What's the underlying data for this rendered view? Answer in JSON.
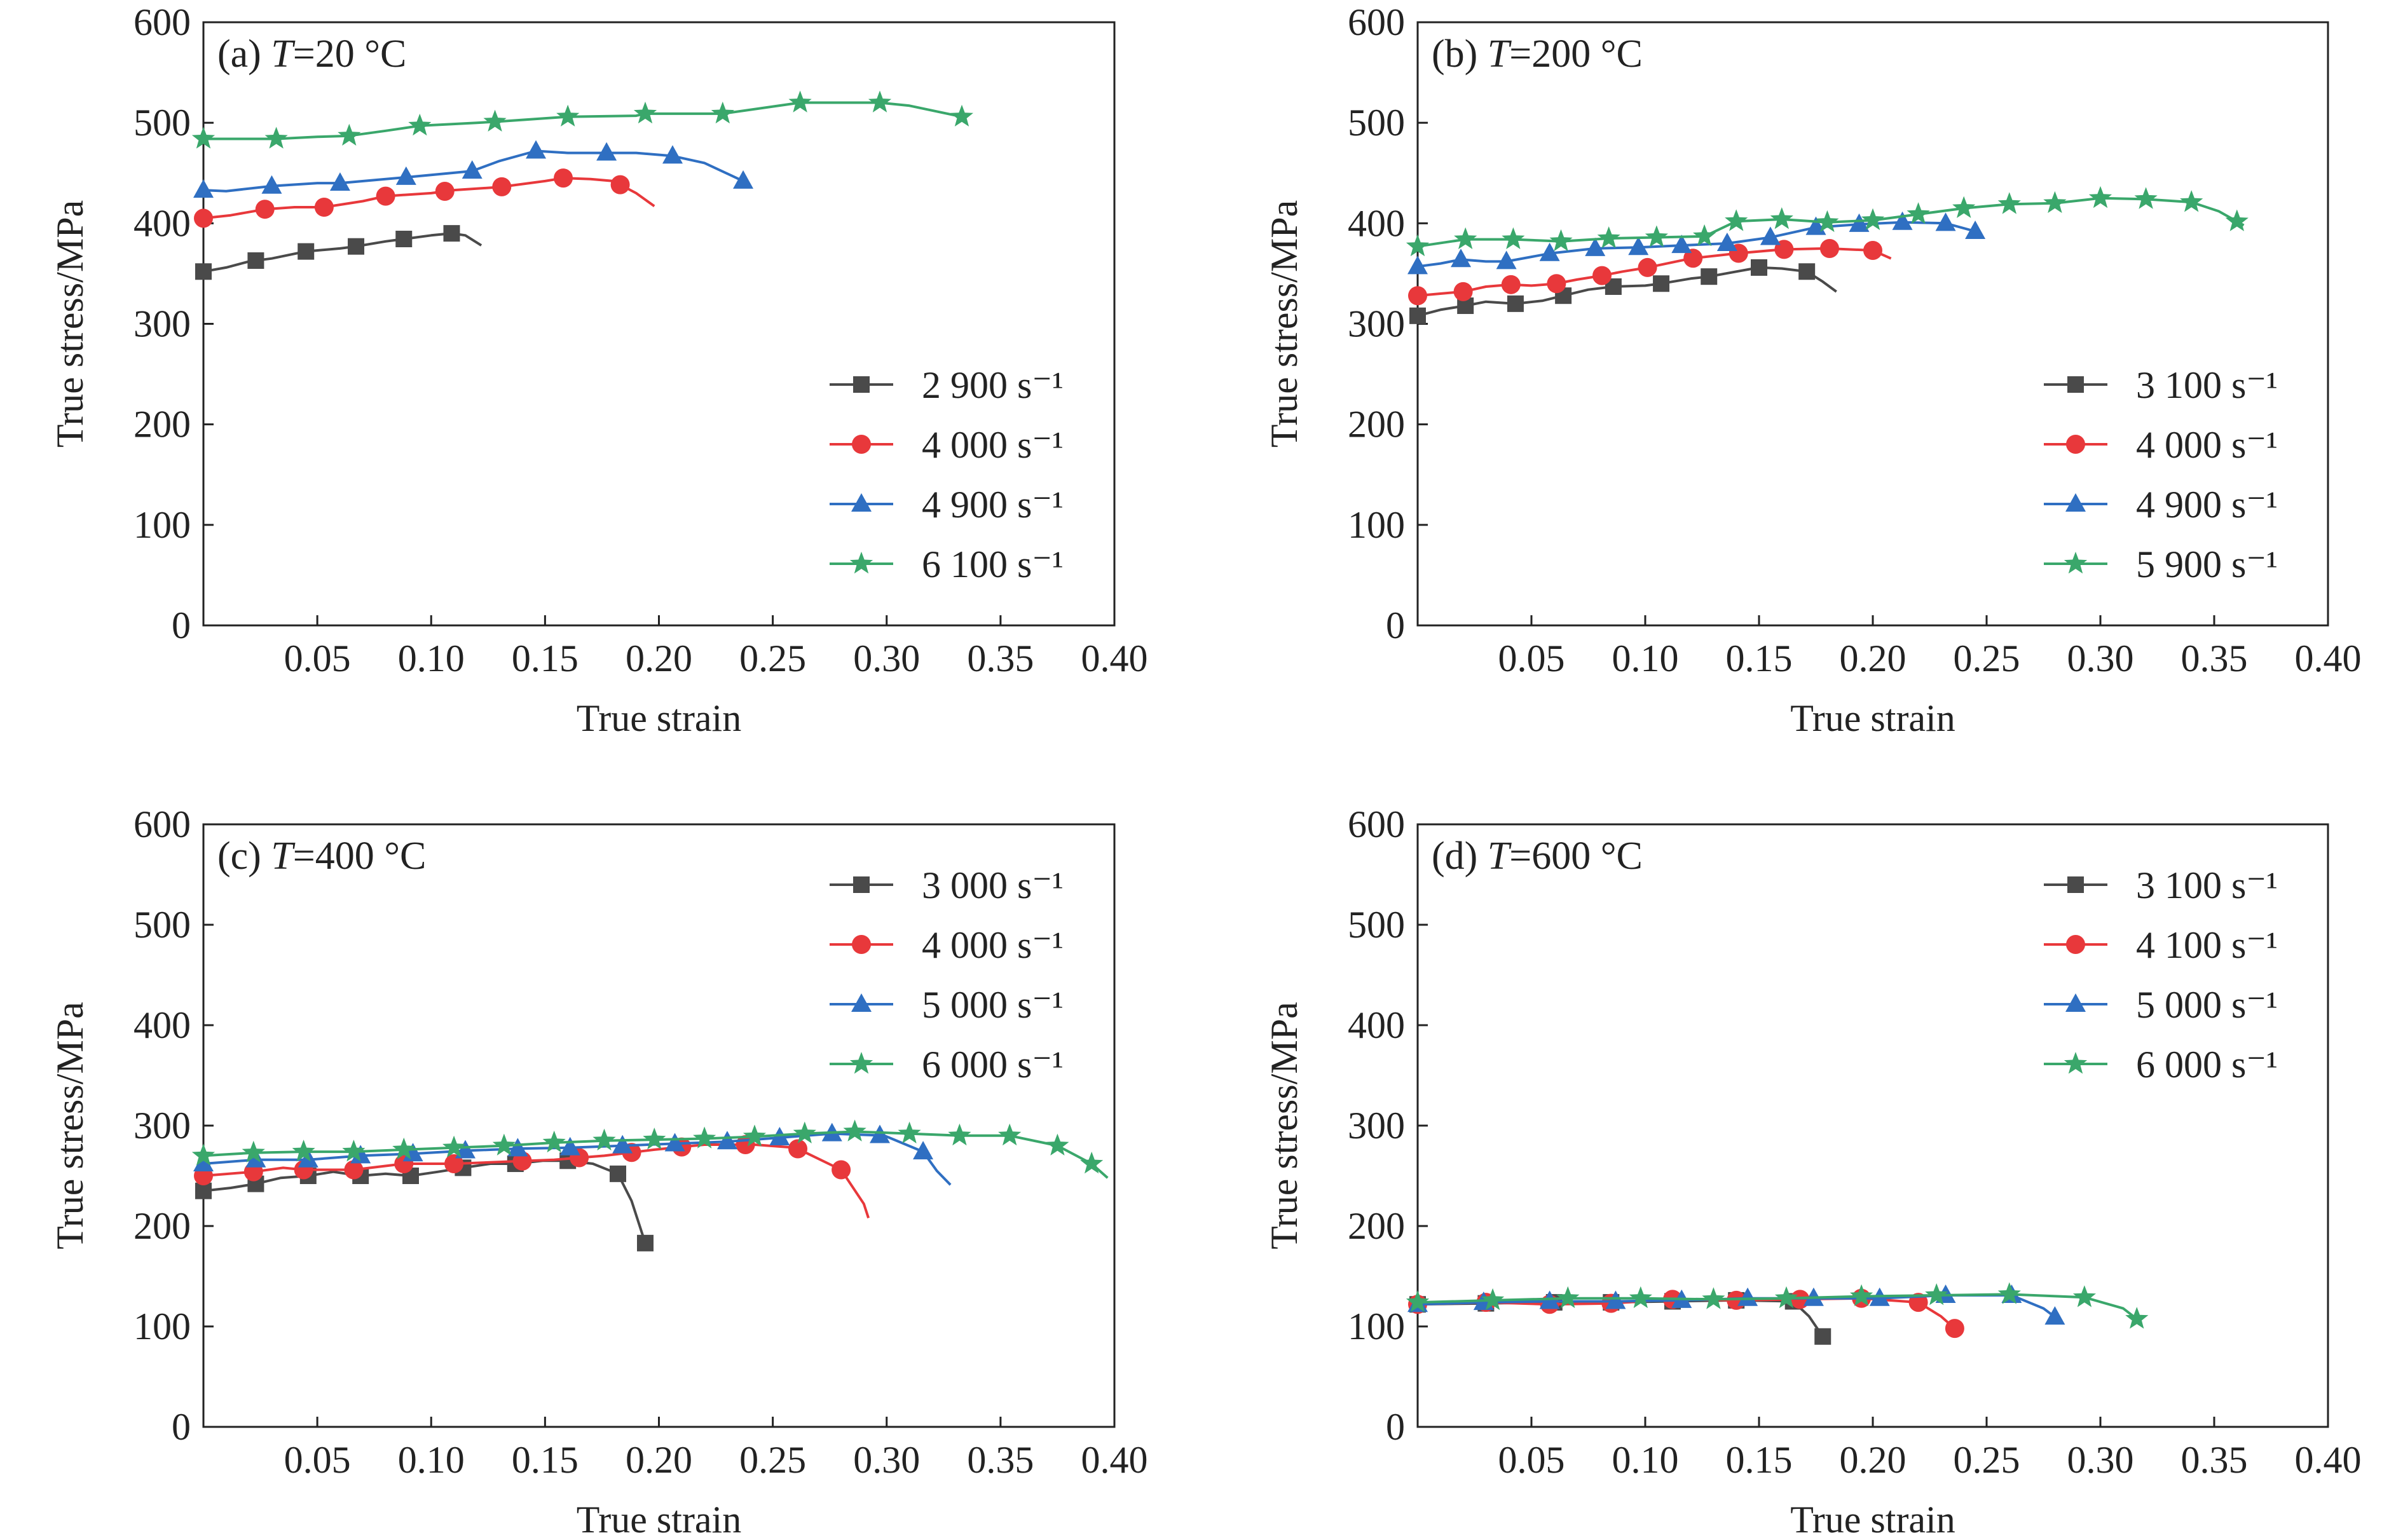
{
  "colors": {
    "black": "#4a4a4a",
    "red": "#e8383b",
    "blue": "#2f6fc2",
    "green": "#3aa76b",
    "axis": "#222222"
  },
  "markers": {
    "black": "square",
    "red": "circle",
    "blue": "triangle",
    "green": "star"
  },
  "chart_data": [
    {
      "type": "line",
      "panel_prefix": "(a) ",
      "panel_var": "T",
      "panel_rest": "=20 °C",
      "xlabel": "True strain",
      "ylabel": "True stress/MPa",
      "xlim": [
        0,
        0.4
      ],
      "ylim": [
        0,
        600
      ],
      "xticks": [
        0.05,
        0.1,
        0.15,
        0.2,
        0.25,
        0.3,
        0.35,
        0.4
      ],
      "xtick_labels": [
        "0.05",
        "0.10",
        "0.15",
        "0.20",
        "0.25",
        "0.30",
        "0.35",
        "0.40"
      ],
      "yticks": [
        0,
        100,
        200,
        300,
        400,
        500,
        600
      ],
      "ytick_labels": [
        "0",
        "100",
        "200",
        "300",
        "400",
        "500",
        "600"
      ],
      "legend_position": "lower-right",
      "series": [
        {
          "name": "2 900 s⁻¹",
          "color": "black",
          "x": [
            0,
            0.01,
            0.02,
            0.03,
            0.045,
            0.06,
            0.067,
            0.08,
            0.09,
            0.1,
            0.109,
            0.115,
            0.122
          ],
          "y": [
            352,
            356,
            362,
            365,
            372,
            375,
            377,
            382,
            385,
            388,
            390,
            388,
            378
          ],
          "markers_x": [
            0,
            0.023,
            0.045,
            0.067,
            0.088,
            0.109
          ]
        },
        {
          "name": "4 000 s⁻¹",
          "color": "red",
          "x": [
            0,
            0.012,
            0.027,
            0.04,
            0.053,
            0.07,
            0.08,
            0.1,
            0.11,
            0.13,
            0.15,
            0.158,
            0.17,
            0.18,
            0.19,
            0.198
          ],
          "y": [
            405,
            408,
            414,
            416,
            416,
            422,
            427,
            430,
            433,
            436,
            442,
            445,
            444,
            442,
            430,
            417
          ],
          "markers_x": [
            0,
            0.027,
            0.053,
            0.08,
            0.106,
            0.131,
            0.158,
            0.183
          ]
        },
        {
          "name": "4 900 s⁻¹",
          "color": "blue",
          "x": [
            0,
            0.01,
            0.03,
            0.05,
            0.06,
            0.09,
            0.118,
            0.13,
            0.146,
            0.16,
            0.177,
            0.19,
            0.206,
            0.22,
            0.237
          ],
          "y": [
            433,
            432,
            437,
            440,
            440,
            446,
            452,
            462,
            472,
            470,
            470,
            470,
            467,
            460,
            442
          ],
          "markers_x": [
            0,
            0.03,
            0.06,
            0.089,
            0.118,
            0.146,
            0.177,
            0.206,
            0.237
          ]
        },
        {
          "name": "6 100 s⁻¹",
          "color": "green",
          "x": [
            0,
            0.02,
            0.032,
            0.05,
            0.064,
            0.08,
            0.095,
            0.12,
            0.128,
            0.16,
            0.19,
            0.194,
            0.228,
            0.262,
            0.28,
            0.297,
            0.31,
            0.333
          ],
          "y": [
            484,
            484,
            484,
            486,
            487,
            492,
            497,
            500,
            501,
            506,
            507,
            509,
            509,
            520,
            520,
            520,
            517,
            506
          ],
          "markers_x": [
            0,
            0.032,
            0.064,
            0.095,
            0.128,
            0.16,
            0.194,
            0.228,
            0.262,
            0.297,
            0.333
          ]
        }
      ]
    },
    {
      "type": "line",
      "panel_prefix": "(b) ",
      "panel_var": "T",
      "panel_rest": "=200 °C",
      "xlabel": "True strain",
      "ylabel": "True stress/MPa",
      "xlim": [
        0,
        0.4
      ],
      "ylim": [
        0,
        600
      ],
      "xticks": [
        0.05,
        0.1,
        0.15,
        0.2,
        0.25,
        0.3,
        0.35,
        0.4
      ],
      "xtick_labels": [
        "0.05",
        "0.10",
        "0.15",
        "0.20",
        "0.25",
        "0.30",
        "0.35",
        "0.40"
      ],
      "yticks": [
        0,
        100,
        200,
        300,
        400,
        500,
        600
      ],
      "ytick_labels": [
        "0",
        "100",
        "200",
        "300",
        "400",
        "500",
        "600"
      ],
      "legend_position": "lower-right",
      "series": [
        {
          "name": "3 100 s⁻¹",
          "color": "black",
          "x": [
            0,
            0.01,
            0.021,
            0.03,
            0.043,
            0.055,
            0.064,
            0.075,
            0.086,
            0.1,
            0.107,
            0.12,
            0.128,
            0.14,
            0.15,
            0.16,
            0.171,
            0.178,
            0.184
          ],
          "y": [
            308,
            314,
            318,
            322,
            320,
            323,
            328,
            334,
            337,
            338,
            340,
            345,
            347,
            352,
            356,
            355,
            352,
            342,
            332
          ],
          "markers_x": [
            0,
            0.021,
            0.043,
            0.064,
            0.086,
            0.107,
            0.128,
            0.15,
            0.171
          ]
        },
        {
          "name": "4 000 s⁻¹",
          "color": "red",
          "x": [
            0,
            0.01,
            0.02,
            0.03,
            0.041,
            0.05,
            0.061,
            0.07,
            0.081,
            0.09,
            0.101,
            0.12,
            0.14,
            0.16,
            0.18,
            0.2,
            0.208
          ],
          "y": [
            328,
            330,
            332,
            337,
            339,
            338,
            340,
            344,
            348,
            352,
            356,
            365,
            370,
            374,
            375,
            373,
            365
          ],
          "markers_x": [
            0,
            0.02,
            0.041,
            0.061,
            0.081,
            0.101,
            0.121,
            0.141,
            0.161,
            0.181,
            0.2
          ]
        },
        {
          "name": "4 900 s⁻¹",
          "color": "blue",
          "x": [
            0,
            0.01,
            0.019,
            0.03,
            0.039,
            0.058,
            0.078,
            0.097,
            0.116,
            0.136,
            0.155,
            0.175,
            0.194,
            0.213,
            0.232,
            0.245
          ],
          "y": [
            357,
            360,
            364,
            362,
            362,
            370,
            375,
            376,
            378,
            380,
            386,
            396,
            399,
            401,
            400,
            392
          ],
          "markers_x": [
            0,
            0.019,
            0.039,
            0.058,
            0.078,
            0.097,
            0.116,
            0.136,
            0.155,
            0.175,
            0.194,
            0.213,
            0.232,
            0.245
          ]
        },
        {
          "name": "5 900 s⁻¹",
          "color": "green",
          "x": [
            0,
            0.021,
            0.042,
            0.063,
            0.084,
            0.105,
            0.126,
            0.14,
            0.16,
            0.18,
            0.2,
            0.22,
            0.24,
            0.26,
            0.28,
            0.3,
            0.32,
            0.34,
            0.352,
            0.363
          ],
          "y": [
            377,
            384,
            384,
            382,
            385,
            386,
            387,
            402,
            404,
            401,
            403,
            409,
            415,
            419,
            420,
            425,
            424,
            421,
            412,
            398
          ],
          "markers_x": [
            0,
            0.021,
            0.042,
            0.063,
            0.084,
            0.105,
            0.126,
            0.14,
            0.16,
            0.18,
            0.2,
            0.22,
            0.24,
            0.26,
            0.28,
            0.3,
            0.32,
            0.34,
            0.36
          ]
        }
      ]
    },
    {
      "type": "line",
      "panel_prefix": "(c) ",
      "panel_var": "T",
      "panel_rest": "=400 °C",
      "xlabel": "True strain",
      "ylabel": "True stress/MPa",
      "xlim": [
        0,
        0.4
      ],
      "ylim": [
        0,
        600
      ],
      "xticks": [
        0.05,
        0.1,
        0.15,
        0.2,
        0.25,
        0.3,
        0.35,
        0.4
      ],
      "xtick_labels": [
        "0.05",
        "0.10",
        "0.15",
        "0.20",
        "0.25",
        "0.30",
        "0.35",
        "0.40"
      ],
      "yticks": [
        0,
        100,
        200,
        300,
        400,
        500,
        600
      ],
      "ytick_labels": [
        "0",
        "100",
        "200",
        "300",
        "400",
        "500",
        "600"
      ],
      "legend_position": "upper-right",
      "series": [
        {
          "name": "3 000 s⁻¹",
          "color": "black",
          "x": [
            0,
            0.012,
            0.023,
            0.034,
            0.046,
            0.057,
            0.069,
            0.08,
            0.091,
            0.103,
            0.114,
            0.126,
            0.137,
            0.149,
            0.16,
            0.171,
            0.182,
            0.188,
            0.194
          ],
          "y": [
            235,
            238,
            242,
            248,
            250,
            254,
            250,
            252,
            250,
            254,
            258,
            262,
            262,
            265,
            265,
            262,
            252,
            225,
            183
          ],
          "markers_x": [
            0,
            0.023,
            0.046,
            0.069,
            0.091,
            0.114,
            0.137,
            0.16,
            0.182,
            0.194
          ]
        },
        {
          "name": "4 000 s⁻¹",
          "color": "red",
          "x": [
            0,
            0.022,
            0.035,
            0.044,
            0.066,
            0.088,
            0.11,
            0.132,
            0.154,
            0.176,
            0.198,
            0.22,
            0.242,
            0.26,
            0.28,
            0.29,
            0.292
          ],
          "y": [
            250,
            254,
            258,
            256,
            256,
            262,
            262,
            264,
            266,
            270,
            276,
            281,
            281,
            278,
            256,
            222,
            208
          ],
          "markers_x": [
            0,
            0.022,
            0.044,
            0.066,
            0.088,
            0.11,
            0.14,
            0.165,
            0.188,
            0.21,
            0.238,
            0.261,
            0.28
          ]
        },
        {
          "name": "5 000 s⁻¹",
          "color": "blue",
          "x": [
            0,
            0.023,
            0.046,
            0.069,
            0.092,
            0.115,
            0.138,
            0.161,
            0.184,
            0.207,
            0.23,
            0.253,
            0.276,
            0.299,
            0.316,
            0.322,
            0.328
          ],
          "y": [
            262,
            266,
            266,
            270,
            272,
            275,
            277,
            278,
            280,
            282,
            284,
            288,
            292,
            290,
            274,
            255,
            241
          ],
          "markers_x": [
            0,
            0.023,
            0.046,
            0.069,
            0.092,
            0.115,
            0.138,
            0.161,
            0.184,
            0.207,
            0.23,
            0.253,
            0.276,
            0.297,
            0.316
          ]
        },
        {
          "name": "6 000 s⁻¹",
          "color": "green",
          "x": [
            0,
            0.022,
            0.044,
            0.066,
            0.088,
            0.11,
            0.132,
            0.154,
            0.176,
            0.198,
            0.22,
            0.242,
            0.264,
            0.286,
            0.31,
            0.332,
            0.354,
            0.375,
            0.39,
            0.397
          ],
          "y": [
            270,
            273,
            274,
            274,
            276,
            278,
            280,
            283,
            285,
            286,
            287,
            289,
            292,
            294,
            292,
            290,
            290,
            280,
            262,
            248
          ],
          "markers_x": [
            0,
            0.022,
            0.044,
            0.066,
            0.088,
            0.11,
            0.132,
            0.154,
            0.176,
            0.198,
            0.22,
            0.242,
            0.264,
            0.286,
            0.31,
            0.332,
            0.354,
            0.375,
            0.39
          ]
        }
      ]
    },
    {
      "type": "line",
      "panel_prefix": "(d) ",
      "panel_var": "T",
      "panel_rest": "=600 °C",
      "xlabel": "True strain",
      "ylabel": "True stress/MPa",
      "xlim": [
        0,
        0.4
      ],
      "ylim": [
        0,
        600
      ],
      "xticks": [
        0.05,
        0.1,
        0.15,
        0.2,
        0.25,
        0.3,
        0.35,
        0.4
      ],
      "xtick_labels": [
        "0.05",
        "0.10",
        "0.15",
        "0.20",
        "0.25",
        "0.30",
        "0.35",
        "0.40"
      ],
      "yticks": [
        0,
        100,
        200,
        300,
        400,
        500,
        600
      ],
      "ytick_labels": [
        "0",
        "100",
        "200",
        "300",
        "400",
        "500",
        "600"
      ],
      "legend_position": "upper-right",
      "series": [
        {
          "name": "3 100 s⁻¹",
          "color": "black",
          "x": [
            0,
            0.03,
            0.06,
            0.085,
            0.112,
            0.14,
            0.165,
            0.172,
            0.178
          ],
          "y": [
            122,
            123,
            124,
            124,
            125,
            126,
            125,
            110,
            90
          ],
          "markers_x": [
            0,
            0.03,
            0.06,
            0.085,
            0.112,
            0.14,
            0.165,
            0.178
          ]
        },
        {
          "name": "4 100 s⁻¹",
          "color": "red",
          "x": [
            0,
            0.03,
            0.058,
            0.085,
            0.112,
            0.14,
            0.168,
            0.195,
            0.22,
            0.23,
            0.236
          ],
          "y": [
            122,
            124,
            122,
            123,
            127,
            126,
            127,
            128,
            124,
            110,
            98
          ],
          "markers_x": [
            0,
            0.03,
            0.058,
            0.085,
            0.112,
            0.14,
            0.168,
            0.195,
            0.22,
            0.236
          ]
        },
        {
          "name": "5 000 s⁻¹",
          "color": "blue",
          "x": [
            0,
            0.029,
            0.058,
            0.087,
            0.116,
            0.145,
            0.174,
            0.203,
            0.232,
            0.261,
            0.275,
            0.282
          ],
          "y": [
            122,
            124,
            125,
            125,
            126,
            128,
            128,
            128,
            131,
            131,
            118,
            106
          ],
          "markers_x": [
            0,
            0.029,
            0.058,
            0.087,
            0.116,
            0.145,
            0.174,
            0.203,
            0.232,
            0.261,
            0.28
          ]
        },
        {
          "name": "6 000 s⁻¹",
          "color": "green",
          "x": [
            0,
            0.033,
            0.066,
            0.098,
            0.13,
            0.162,
            0.195,
            0.228,
            0.26,
            0.293,
            0.31,
            0.318
          ],
          "y": [
            124,
            126,
            128,
            128,
            127,
            128,
            130,
            131,
            132,
            129,
            118,
            104
          ],
          "markers_x": [
            0,
            0.033,
            0.066,
            0.098,
            0.13,
            0.162,
            0.195,
            0.228,
            0.26,
            0.293,
            0.316
          ]
        }
      ]
    }
  ]
}
